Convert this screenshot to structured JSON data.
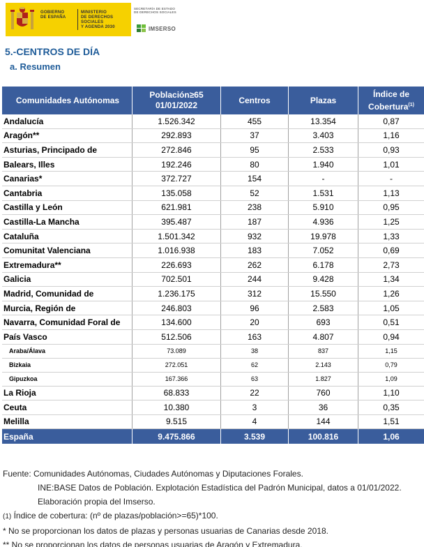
{
  "header": {
    "gov_line1": "GOBIERNO",
    "gov_line2": "DE ESPAÑA",
    "min_line1": "MINISTERIO",
    "min_line2": "DE DERECHOS SOCIALES",
    "min_line3": "Y AGENDA 2030",
    "sec_line1": "SECRETARÍA DE ESTADO",
    "sec_line2": "DE DERECHOS SOCIALES",
    "imserso": "IMSERSO"
  },
  "title": "5.-CENTROS DE DÍA",
  "subtitle": "a. Resumen",
  "table": {
    "headers": {
      "col1": "Comunidades Autónomas",
      "col2_line1": "Población≥65",
      "col2_line2": "01/01/2022",
      "col3": "Centros",
      "col4": "Plazas",
      "col5_line1": "Índice de",
      "col5_line2": "Cobertura",
      "col5_sup": "(1)"
    },
    "rows": [
      [
        "Andalucía",
        "1.526.342",
        "455",
        "13.354",
        "0,87"
      ],
      [
        "Aragón**",
        "292.893",
        "37",
        "3.403",
        "1,16"
      ],
      [
        "Asturias, Principado de",
        "272.846",
        "95",
        "2.533",
        "0,93"
      ],
      [
        "Balears, Illes",
        "192.246",
        "80",
        "1.940",
        "1,01"
      ],
      [
        "Canarias*",
        "372.727",
        "154",
        "-",
        "-"
      ],
      [
        "Cantabria",
        "135.058",
        "52",
        "1.531",
        "1,13"
      ],
      [
        "Castilla y León",
        "621.981",
        "238",
        "5.910",
        "0,95"
      ],
      [
        "Castilla-La Mancha",
        "395.487",
        "187",
        "4.936",
        "1,25"
      ],
      [
        "Cataluña",
        "1.501.342",
        "932",
        "19.978",
        "1,33"
      ],
      [
        "Comunitat Valenciana",
        "1.016.938",
        "183",
        "7.052",
        "0,69"
      ],
      [
        "Extremadura**",
        "226.693",
        "262",
        "6.178",
        "2,73"
      ],
      [
        "Galicia",
        "702.501",
        "244",
        "9.428",
        "1,34"
      ],
      [
        "Madrid, Comunidad de",
        "1.236.175",
        "312",
        "15.550",
        "1,26"
      ],
      [
        "Murcia, Región de",
        "246.803",
        "96",
        "2.583",
        "1,05"
      ],
      [
        "Navarra, Comunidad Foral de",
        "134.600",
        "20",
        "693",
        "0,51"
      ],
      [
        "País Vasco",
        "512.506",
        "163",
        "4.807",
        "0,94"
      ]
    ],
    "sub_rows": [
      [
        "Araba/Álava",
        "73.089",
        "38",
        "837",
        "1,15"
      ],
      [
        "Bizkaia",
        "272.051",
        "62",
        "2.143",
        "0,79"
      ],
      [
        "Gipuzkoa",
        "167.366",
        "63",
        "1.827",
        "1,09"
      ]
    ],
    "tail_rows": [
      [
        "La Rioja",
        "68.833",
        "22",
        "760",
        "1,10"
      ],
      [
        "Ceuta",
        "10.380",
        "3",
        "36",
        "0,35"
      ],
      [
        "Melilla",
        "9.515",
        "4",
        "144",
        "1,51"
      ]
    ],
    "total": [
      "España",
      "9.475.866",
      "3.539",
      "100.816",
      "1,06"
    ]
  },
  "notes": {
    "line1": "Fuente: Comunidades Autónomas, Ciudades Autónomas y  Diputaciones Forales.",
    "line2": "INE:BASE Datos de Población. Explotación  Estadística del Padrón Municipal, datos a 01/01/2022.",
    "line3": "Elaboración propia del Imserso.",
    "line4_prefix": "(1)",
    "line4": " Índice de cobertura: (nº de plazas/población>=65)*100.",
    "line5": "* No se proporcionan los datos de plazas y personas usuarias de Canarias desde 2018.",
    "line6": "** No se proporcionan los datos de personas usuarias de Aragón y Extremadura."
  }
}
